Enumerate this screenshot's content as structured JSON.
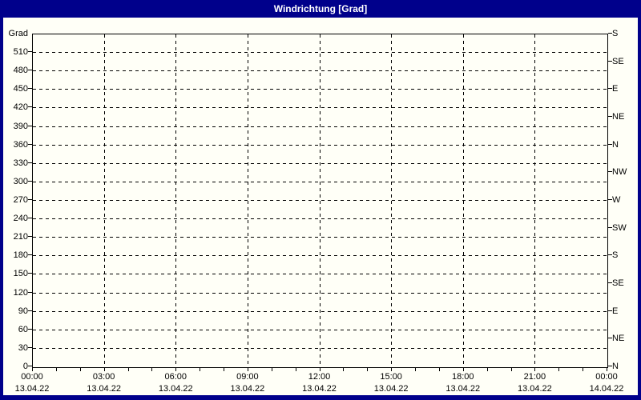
{
  "window": {
    "title": "Windrichtung [Grad]"
  },
  "colors": {
    "frame_border": "#00008B",
    "titlebar_bg": "#00008B",
    "titlebar_text": "#FFFFFF",
    "content_bg": "#FFFFF7",
    "grid": "#000000",
    "axis_text": "#000000"
  },
  "chart_data": {
    "type": "line",
    "title": "Windrichtung [Grad]",
    "ylabel": "Grad",
    "ylim": [
      0,
      540
    ],
    "grid": "dashed",
    "legend": "none",
    "series": [],
    "note_no_data_plotted": true,
    "y_axis_left": {
      "unit_label": "Grad",
      "tick_step": 30,
      "ticks": [
        {
          "value": 540,
          "label": "Grad",
          "tick": false
        },
        {
          "value": 510,
          "label": "510"
        },
        {
          "value": 480,
          "label": "480"
        },
        {
          "value": 450,
          "label": "450"
        },
        {
          "value": 420,
          "label": "420"
        },
        {
          "value": 390,
          "label": "390"
        },
        {
          "value": 360,
          "label": "360"
        },
        {
          "value": 330,
          "label": "330"
        },
        {
          "value": 300,
          "label": "300"
        },
        {
          "value": 270,
          "label": "270"
        },
        {
          "value": 240,
          "label": "240"
        },
        {
          "value": 210,
          "label": "210"
        },
        {
          "value": 180,
          "label": "180"
        },
        {
          "value": 150,
          "label": "150"
        },
        {
          "value": 120,
          "label": "120"
        },
        {
          "value": 90,
          "label": "90"
        },
        {
          "value": 60,
          "label": "60"
        },
        {
          "value": 30,
          "label": "30"
        },
        {
          "value": 0,
          "label": "0"
        }
      ]
    },
    "y_axis_right": {
      "tick_step": 45,
      "ticks": [
        {
          "value": 540,
          "label": "S"
        },
        {
          "value": 495,
          "label": "SE"
        },
        {
          "value": 450,
          "label": "E"
        },
        {
          "value": 405,
          "label": "NE"
        },
        {
          "value": 360,
          "label": "N"
        },
        {
          "value": 315,
          "label": "NW"
        },
        {
          "value": 270,
          "label": "W"
        },
        {
          "value": 225,
          "label": "SW"
        },
        {
          "value": 180,
          "label": "S"
        },
        {
          "value": 135,
          "label": "SE"
        },
        {
          "value": 90,
          "label": "E"
        },
        {
          "value": 45,
          "label": "NE"
        },
        {
          "value": 0,
          "label": "N"
        }
      ]
    },
    "x_axis": {
      "hours_range": [
        0,
        24
      ],
      "minor_tick_hours": 1,
      "major_tick_hours": 3,
      "major_ticks": [
        {
          "hour": 0,
          "time": "00:00",
          "date": "13.04.22"
        },
        {
          "hour": 3,
          "time": "03:00",
          "date": "13.04.22"
        },
        {
          "hour": 6,
          "time": "06:00",
          "date": "13.04.22"
        },
        {
          "hour": 9,
          "time": "09:00",
          "date": "13.04.22"
        },
        {
          "hour": 12,
          "time": "12:00",
          "date": "13.04.22"
        },
        {
          "hour": 15,
          "time": "15:00",
          "date": "13.04.22"
        },
        {
          "hour": 18,
          "time": "18:00",
          "date": "13.04.22"
        },
        {
          "hour": 21,
          "time": "21:00",
          "date": "13.04.22"
        },
        {
          "hour": 24,
          "time": "00:00",
          "date": "14.04.22"
        }
      ]
    }
  }
}
